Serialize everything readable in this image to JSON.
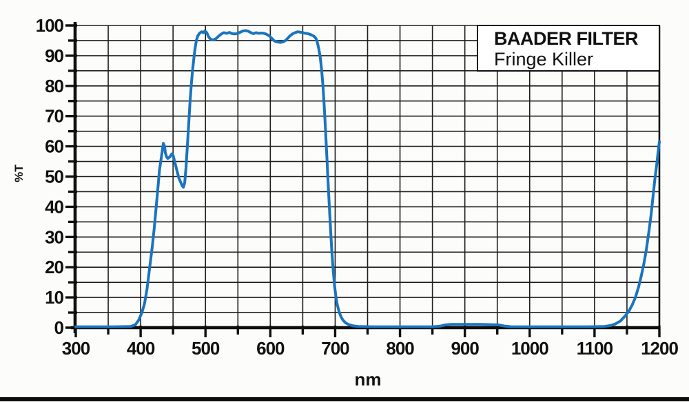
{
  "legend": {
    "title": "BAADER FILTER",
    "subtitle": "Fringe Killer"
  },
  "colors": {
    "curve": "#1a74bf",
    "grid": "#1e1e1e",
    "axis": "#0f0f0f",
    "background": "#fcfcfa",
    "legend_border": "#111111"
  },
  "chart_data": {
    "type": "line",
    "title": "BAADER FILTER Fringe Killer spectral transmission curve",
    "xlabel": "nm",
    "ylabel": "%T",
    "xlim": [
      300,
      1200
    ],
    "ylim": [
      0,
      100
    ],
    "x_ticks": [
      300,
      400,
      500,
      600,
      700,
      800,
      900,
      1000,
      1100,
      1200
    ],
    "x_minor_step": 50,
    "y_ticks": [
      0,
      10,
      20,
      30,
      40,
      50,
      60,
      70,
      80,
      90,
      100
    ],
    "y_minor_step": 5,
    "grid": "on (every 50 nm vertical, every 5 %T horizontal)",
    "legend_position": "top-right white box",
    "series": [
      {
        "name": "Fringe Killer transmission",
        "color": "#1a74bf",
        "points": [
          [
            300,
            0.3
          ],
          [
            330,
            0.3
          ],
          [
            360,
            0.3
          ],
          [
            385,
            0.4
          ],
          [
            392,
            1
          ],
          [
            397,
            2.5
          ],
          [
            402,
            5
          ],
          [
            406,
            8
          ],
          [
            410,
            13
          ],
          [
            414,
            20
          ],
          [
            418,
            27
          ],
          [
            421,
            33
          ],
          [
            424,
            40
          ],
          [
            427,
            47
          ],
          [
            429,
            52
          ],
          [
            431,
            55
          ],
          [
            433,
            58
          ],
          [
            435,
            61
          ],
          [
            437,
            60
          ],
          [
            438,
            58
          ],
          [
            440,
            56.5
          ],
          [
            442,
            56
          ],
          [
            445,
            56.5
          ],
          [
            448,
            57.5
          ],
          [
            450,
            57
          ],
          [
            453,
            54.5
          ],
          [
            456,
            52
          ],
          [
            459,
            49.5
          ],
          [
            462,
            48
          ],
          [
            464,
            47
          ],
          [
            466,
            46.5
          ],
          [
            468,
            48
          ],
          [
            470,
            53
          ],
          [
            472,
            60
          ],
          [
            474,
            67
          ],
          [
            476,
            74
          ],
          [
            478,
            80
          ],
          [
            480,
            85
          ],
          [
            482,
            89
          ],
          [
            484,
            92.5
          ],
          [
            486,
            95
          ],
          [
            488,
            96.5
          ],
          [
            491,
            97.5
          ],
          [
            494,
            97.9
          ],
          [
            497,
            97.6
          ],
          [
            499,
            98.2
          ],
          [
            502,
            97.6
          ],
          [
            505,
            96.2
          ],
          [
            508,
            95.4
          ],
          [
            512,
            95.2
          ],
          [
            516,
            95.6
          ],
          [
            520,
            96.4
          ],
          [
            524,
            97.1
          ],
          [
            528,
            97.6
          ],
          [
            533,
            97.4
          ],
          [
            537,
            97.7
          ],
          [
            541,
            97.3
          ],
          [
            546,
            97.2
          ],
          [
            550,
            97.4
          ],
          [
            554,
            97.8
          ],
          [
            558,
            98.2
          ],
          [
            562,
            98.3
          ],
          [
            566,
            98.1
          ],
          [
            570,
            97.6
          ],
          [
            574,
            97.3
          ],
          [
            578,
            97.6
          ],
          [
            582,
            97.4
          ],
          [
            586,
            97.5
          ],
          [
            590,
            97.4
          ],
          [
            594,
            97.1
          ],
          [
            598,
            96.6
          ],
          [
            602,
            95.8
          ],
          [
            605,
            95.1
          ],
          [
            608,
            94.7
          ],
          [
            612,
            94.5
          ],
          [
            616,
            94.4
          ],
          [
            620,
            94.6
          ],
          [
            624,
            95.1
          ],
          [
            627,
            95.8
          ],
          [
            630,
            96.5
          ],
          [
            634,
            97.2
          ],
          [
            638,
            97.6
          ],
          [
            642,
            97.9
          ],
          [
            646,
            97.8
          ],
          [
            650,
            97.6
          ],
          [
            654,
            97.4
          ],
          [
            658,
            97.3
          ],
          [
            662,
            97
          ],
          [
            666,
            96.6
          ],
          [
            669,
            96.1
          ],
          [
            671,
            95.4
          ],
          [
            673,
            94
          ],
          [
            675,
            92
          ],
          [
            677,
            89.5
          ],
          [
            679,
            85.5
          ],
          [
            681,
            80.5
          ],
          [
            683,
            74
          ],
          [
            685,
            66
          ],
          [
            687,
            57.5
          ],
          [
            689,
            48.5
          ],
          [
            691,
            40
          ],
          [
            693,
            32
          ],
          [
            695,
            25
          ],
          [
            697,
            19
          ],
          [
            699,
            14
          ],
          [
            701,
            10.5
          ],
          [
            703,
            7.8
          ],
          [
            706,
            5.3
          ],
          [
            709,
            3.6
          ],
          [
            712,
            2.5
          ],
          [
            716,
            1.6
          ],
          [
            721,
            1
          ],
          [
            728,
            0.6
          ],
          [
            736,
            0.4
          ],
          [
            760,
            0.3
          ],
          [
            800,
            0.3
          ],
          [
            850,
            0.3
          ],
          [
            862,
            0.5
          ],
          [
            870,
            0.9
          ],
          [
            880,
            1.1
          ],
          [
            895,
            1.1
          ],
          [
            910,
            1.1
          ],
          [
            925,
            1.1
          ],
          [
            940,
            1
          ],
          [
            952,
            0.9
          ],
          [
            962,
            0.5
          ],
          [
            972,
            0.3
          ],
          [
            1000,
            0.3
          ],
          [
            1050,
            0.3
          ],
          [
            1090,
            0.3
          ],
          [
            1115,
            0.4
          ],
          [
            1125,
            0.7
          ],
          [
            1132,
            1.2
          ],
          [
            1140,
            2.2
          ],
          [
            1147,
            3.8
          ],
          [
            1153,
            5.5
          ],
          [
            1158,
            7.5
          ],
          [
            1163,
            10
          ],
          [
            1168,
            13.5
          ],
          [
            1172,
            17
          ],
          [
            1176,
            21
          ],
          [
            1180,
            26
          ],
          [
            1184,
            32
          ],
          [
            1187,
            37
          ],
          [
            1190,
            43
          ],
          [
            1193,
            49
          ],
          [
            1196,
            54
          ],
          [
            1198,
            58
          ],
          [
            1200,
            61.5
          ]
        ]
      }
    ]
  }
}
